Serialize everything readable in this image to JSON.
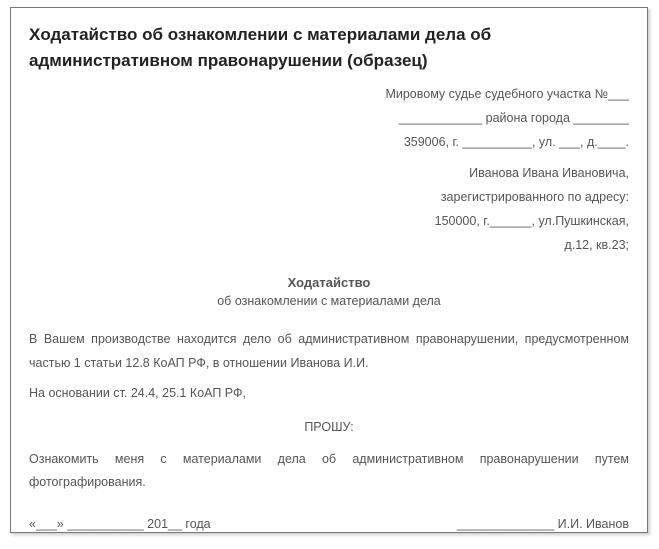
{
  "title": "Xодатайство об ознакомлении с материалами дела об административном правонарушении (образец)",
  "addressee": {
    "line1": "Мировому судье судебного участка №___",
    "line2": "____________ района города ________",
    "line3": "359006, г. __________, ул. ___, д.____."
  },
  "sender": {
    "line1": "Иванова Ивана Ивановича,",
    "line2": "зарегистрированного по адресу:",
    "line3": "150000, г.______, ул.Пушкинская,",
    "line4": "д.12, кв.23;"
  },
  "doc_heading": "Ходатайство",
  "doc_subheading": "об ознакомлении с материалами дела",
  "body1": "В Вашем производстве находится дело об административном правонарушении, предусмотренном частью 1 статьи 12.8 КоАП РФ, в отношении Иванова И.И.",
  "body2": "На основании ст. 24.4, 25.1 КоАП РФ,",
  "request_label": "ПРОШУ:",
  "request_body": "Ознакомить меня с материалами дела об административном правонарушении путем фотографирования.",
  "footer": {
    "date": "«___» ___________ 201__ года",
    "signature": "______________ И.И. Иванов"
  },
  "colors": {
    "text_title": "#222222",
    "text_body": "#555555",
    "border": "#777777",
    "background": "#ffffff"
  },
  "typography": {
    "title_fontsize": 17,
    "body_fontsize": 12.5,
    "font_family": "Arial",
    "line_height": 1.9
  }
}
